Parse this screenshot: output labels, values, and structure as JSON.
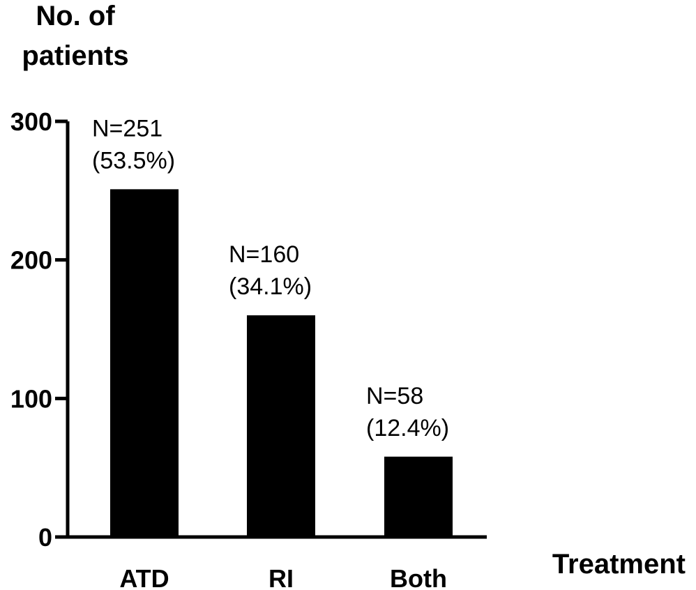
{
  "chart_data": {
    "type": "bar",
    "title": "",
    "ylabel_lines": [
      "No. of",
      "patients"
    ],
    "xlabel": "Treatment",
    "categories": [
      "ATD",
      "RI",
      "Both"
    ],
    "values": [
      251,
      160,
      58
    ],
    "data_labels": [
      [
        "N=251",
        "(53.5%)"
      ],
      [
        "N=160",
        "(34.1%)"
      ],
      [
        "N=58",
        "(12.4%)"
      ]
    ],
    "ylim": [
      0,
      300
    ],
    "yticks": [
      0,
      100,
      200,
      300
    ],
    "ytick_labels": [
      "0",
      "100",
      "200",
      "300"
    ],
    "bar_color": "#000000",
    "grid": false
  }
}
